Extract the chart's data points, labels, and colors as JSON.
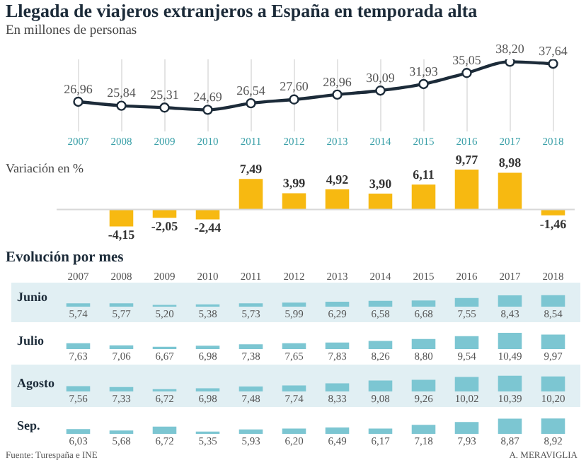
{
  "chart_data": [
    {
      "type": "line",
      "title": "Llegada de viajeros extranjeros a España en temporada alta",
      "subtitle": "En millones de personas",
      "categories": [
        "2007",
        "2008",
        "2009",
        "2010",
        "2011",
        "2012",
        "2013",
        "2014",
        "2015",
        "2016",
        "2017",
        "2018"
      ],
      "values": [
        26.96,
        25.84,
        25.31,
        24.69,
        26.54,
        27.6,
        28.96,
        30.09,
        31.93,
        35.05,
        38.2,
        37.64
      ],
      "value_labels": [
        "26,96",
        "25,84",
        "25,31",
        "24,69",
        "26,54",
        "27,60",
        "28,96",
        "30,09",
        "31,93",
        "35,05",
        "38,20",
        "37,64"
      ],
      "color": "#1c2b39",
      "marker": "circle",
      "grid": "x",
      "tick_labels": "x"
    },
    {
      "type": "bar",
      "title": "Variación en %",
      "categories": [
        null,
        null,
        null,
        null,
        null,
        null,
        null,
        null,
        null,
        null,
        null,
        null
      ],
      "values": [
        null,
        -4.15,
        -2.05,
        -2.44,
        7.49,
        3.99,
        4.92,
        3.9,
        6.11,
        9.77,
        8.98,
        -1.46
      ],
      "value_labels": [
        null,
        "-4,15",
        "-2,05",
        "-2,44",
        "7,49",
        "3,99",
        "4,92",
        "3,90",
        "6,11",
        "9,77",
        "8,98",
        "-1,46"
      ],
      "color": "#f7b911",
      "tick_labels": false
    },
    {
      "type": "bar",
      "title": "Evolución por mes",
      "ylabel": "Junio",
      "categories": [
        "2007",
        "2008",
        "2009",
        "2010",
        "2011",
        "2012",
        "2013",
        "2014",
        "2015",
        "2016",
        "2017",
        "2018"
      ],
      "values": [
        5.74,
        5.77,
        5.2,
        5.38,
        5.73,
        5.99,
        6.29,
        6.58,
        6.68,
        7.55,
        8.43,
        8.54
      ],
      "value_labels": [
        "5,74",
        "5,77",
        "5,20",
        "5,38",
        "5,73",
        "5,99",
        "6,29",
        "6,58",
        "6,68",
        "7,55",
        "8,43",
        "8,54"
      ],
      "color": "#7cc6d2",
      "tick_labels": "x"
    },
    {
      "type": "bar",
      "ylabel": "Julio",
      "categories": [
        "2007",
        "2008",
        "2009",
        "2010",
        "2011",
        "2012",
        "2013",
        "2014",
        "2015",
        "2016",
        "2017",
        "2018"
      ],
      "values": [
        7.63,
        7.06,
        6.67,
        6.98,
        7.38,
        7.65,
        7.83,
        8.26,
        8.8,
        9.54,
        10.49,
        9.97
      ],
      "value_labels": [
        "7,63",
        "7,06",
        "6,67",
        "6,98",
        "7,38",
        "7,65",
        "7,83",
        "8,26",
        "8,80",
        "9,54",
        "10,49",
        "9,97"
      ],
      "color": "#7cc6d2",
      "tick_labels": false
    },
    {
      "type": "bar",
      "ylabel": "Agosto",
      "categories": [
        "2007",
        "2008",
        "2009",
        "2010",
        "2011",
        "2012",
        "2013",
        "2014",
        "2015",
        "2016",
        "2017",
        "2018"
      ],
      "values": [
        7.56,
        7.33,
        6.72,
        6.98,
        7.48,
        7.74,
        8.33,
        9.08,
        9.26,
        10.02,
        10.39,
        10.2
      ],
      "value_labels": [
        "7,56",
        "7,33",
        "6,72",
        "6,98",
        "7,48",
        "7,74",
        "8,33",
        "9,08",
        "9,26",
        "10,02",
        "10,39",
        "10,20"
      ],
      "color": "#7cc6d2",
      "tick_labels": false
    },
    {
      "type": "bar",
      "ylabel": "Sep.",
      "categories": [
        "2007",
        "2008",
        "2009",
        "2010",
        "2011",
        "2012",
        "2013",
        "2014",
        "2015",
        "2016",
        "2017",
        "2018"
      ],
      "values": [
        6.03,
        5.68,
        6.72,
        5.35,
        5.93,
        6.2,
        6.49,
        6.17,
        7.18,
        7.93,
        8.87,
        8.92
      ],
      "value_labels": [
        "6,03",
        "5,68",
        "6,72",
        "5,35",
        "5,93",
        "6,20",
        "6,49",
        "6,17",
        "7,18",
        "7,93",
        "8,87",
        "8,92"
      ],
      "color": "#7cc6d2",
      "tick_labels": false,
      "annotations": [
        "Fuente: Turespaña e INE",
        "A. MERAVIGLIA"
      ]
    }
  ]
}
